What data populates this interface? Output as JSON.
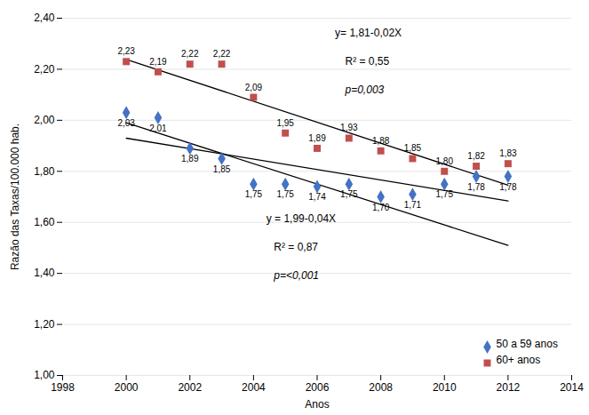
{
  "chart_data": {
    "type": "scatter",
    "xlabel": "Anos",
    "ylabel": "Razão das Taxas/100.000 hab.",
    "xlim": [
      1998,
      2014
    ],
    "xticks": [
      1998,
      2000,
      2002,
      2004,
      2006,
      2008,
      2010,
      2012,
      2014
    ],
    "ylim": [
      1.0,
      2.4
    ],
    "yticks": [
      {
        "value": 1.0,
        "label": "1,00"
      },
      {
        "value": 1.2,
        "label": "1,20"
      },
      {
        "value": 1.4,
        "label": "1,40"
      },
      {
        "value": 1.6,
        "label": "1,60"
      },
      {
        "value": 1.8,
        "label": "1,80"
      },
      {
        "value": 2.0,
        "label": "2,00"
      },
      {
        "value": 2.2,
        "label": "2,20"
      },
      {
        "value": 2.4,
        "label": "2,40"
      }
    ],
    "grid": true,
    "legend": "lower right",
    "data_labels": true,
    "series": [
      {
        "name": "50 a 59 anos",
        "color": "#4472C4",
        "marker": "diamond",
        "x": [
          2000,
          2001,
          2002,
          2003,
          2004,
          2005,
          2006,
          2007,
          2008,
          2009,
          2010,
          2011,
          2012
        ],
        "values": [
          2.03,
          2.01,
          1.89,
          1.85,
          1.75,
          1.75,
          1.74,
          1.75,
          1.7,
          1.71,
          1.75,
          1.78,
          1.78
        ],
        "value_labels": [
          "2,03",
          "2,01",
          "1,89",
          "1,85",
          "1,75",
          "1,75",
          "1,74",
          "1,75",
          "1,70",
          "1,71",
          "1,75",
          "1,78",
          "1,78"
        ]
      },
      {
        "name": "60+ anos",
        "color": "#C0504D",
        "marker": "square",
        "x": [
          2000,
          2001,
          2002,
          2003,
          2004,
          2005,
          2006,
          2007,
          2008,
          2009,
          2010,
          2011,
          2012
        ],
        "values": [
          2.23,
          2.19,
          2.22,
          2.22,
          2.09,
          1.95,
          1.89,
          1.93,
          1.88,
          1.85,
          1.8,
          1.82,
          1.83
        ],
        "value_labels": [
          "2,23",
          "2,19",
          "2,22",
          "2,22",
          "2,09",
          "1,95",
          "1,89",
          "1,93",
          "1,88",
          "1,85",
          "1,80",
          "1,82",
          "1,83"
        ]
      },
      {
        "type": "line",
        "color": "#000000",
        "x": [
          2000,
          2012
        ],
        "values": [
          1.99,
          1.51
        ]
      },
      {
        "type": "line",
        "color": "#000000",
        "x": [
          2000,
          2012
        ],
        "values": [
          1.9298901099,
          1.683956044
        ]
      },
      {
        "type": "line",
        "color": "#000000",
        "x": [
          2000,
          2012
        ],
        "values": [
          2.2389010989,
          1.7457142857
        ]
      }
    ],
    "annotations": [
      "y= 1,81-0,02X",
      "R² = 0,55",
      "p=0,003",
      "y = 1,99-0,04X",
      "R² = 0,87",
      "p=<0,001"
    ]
  }
}
